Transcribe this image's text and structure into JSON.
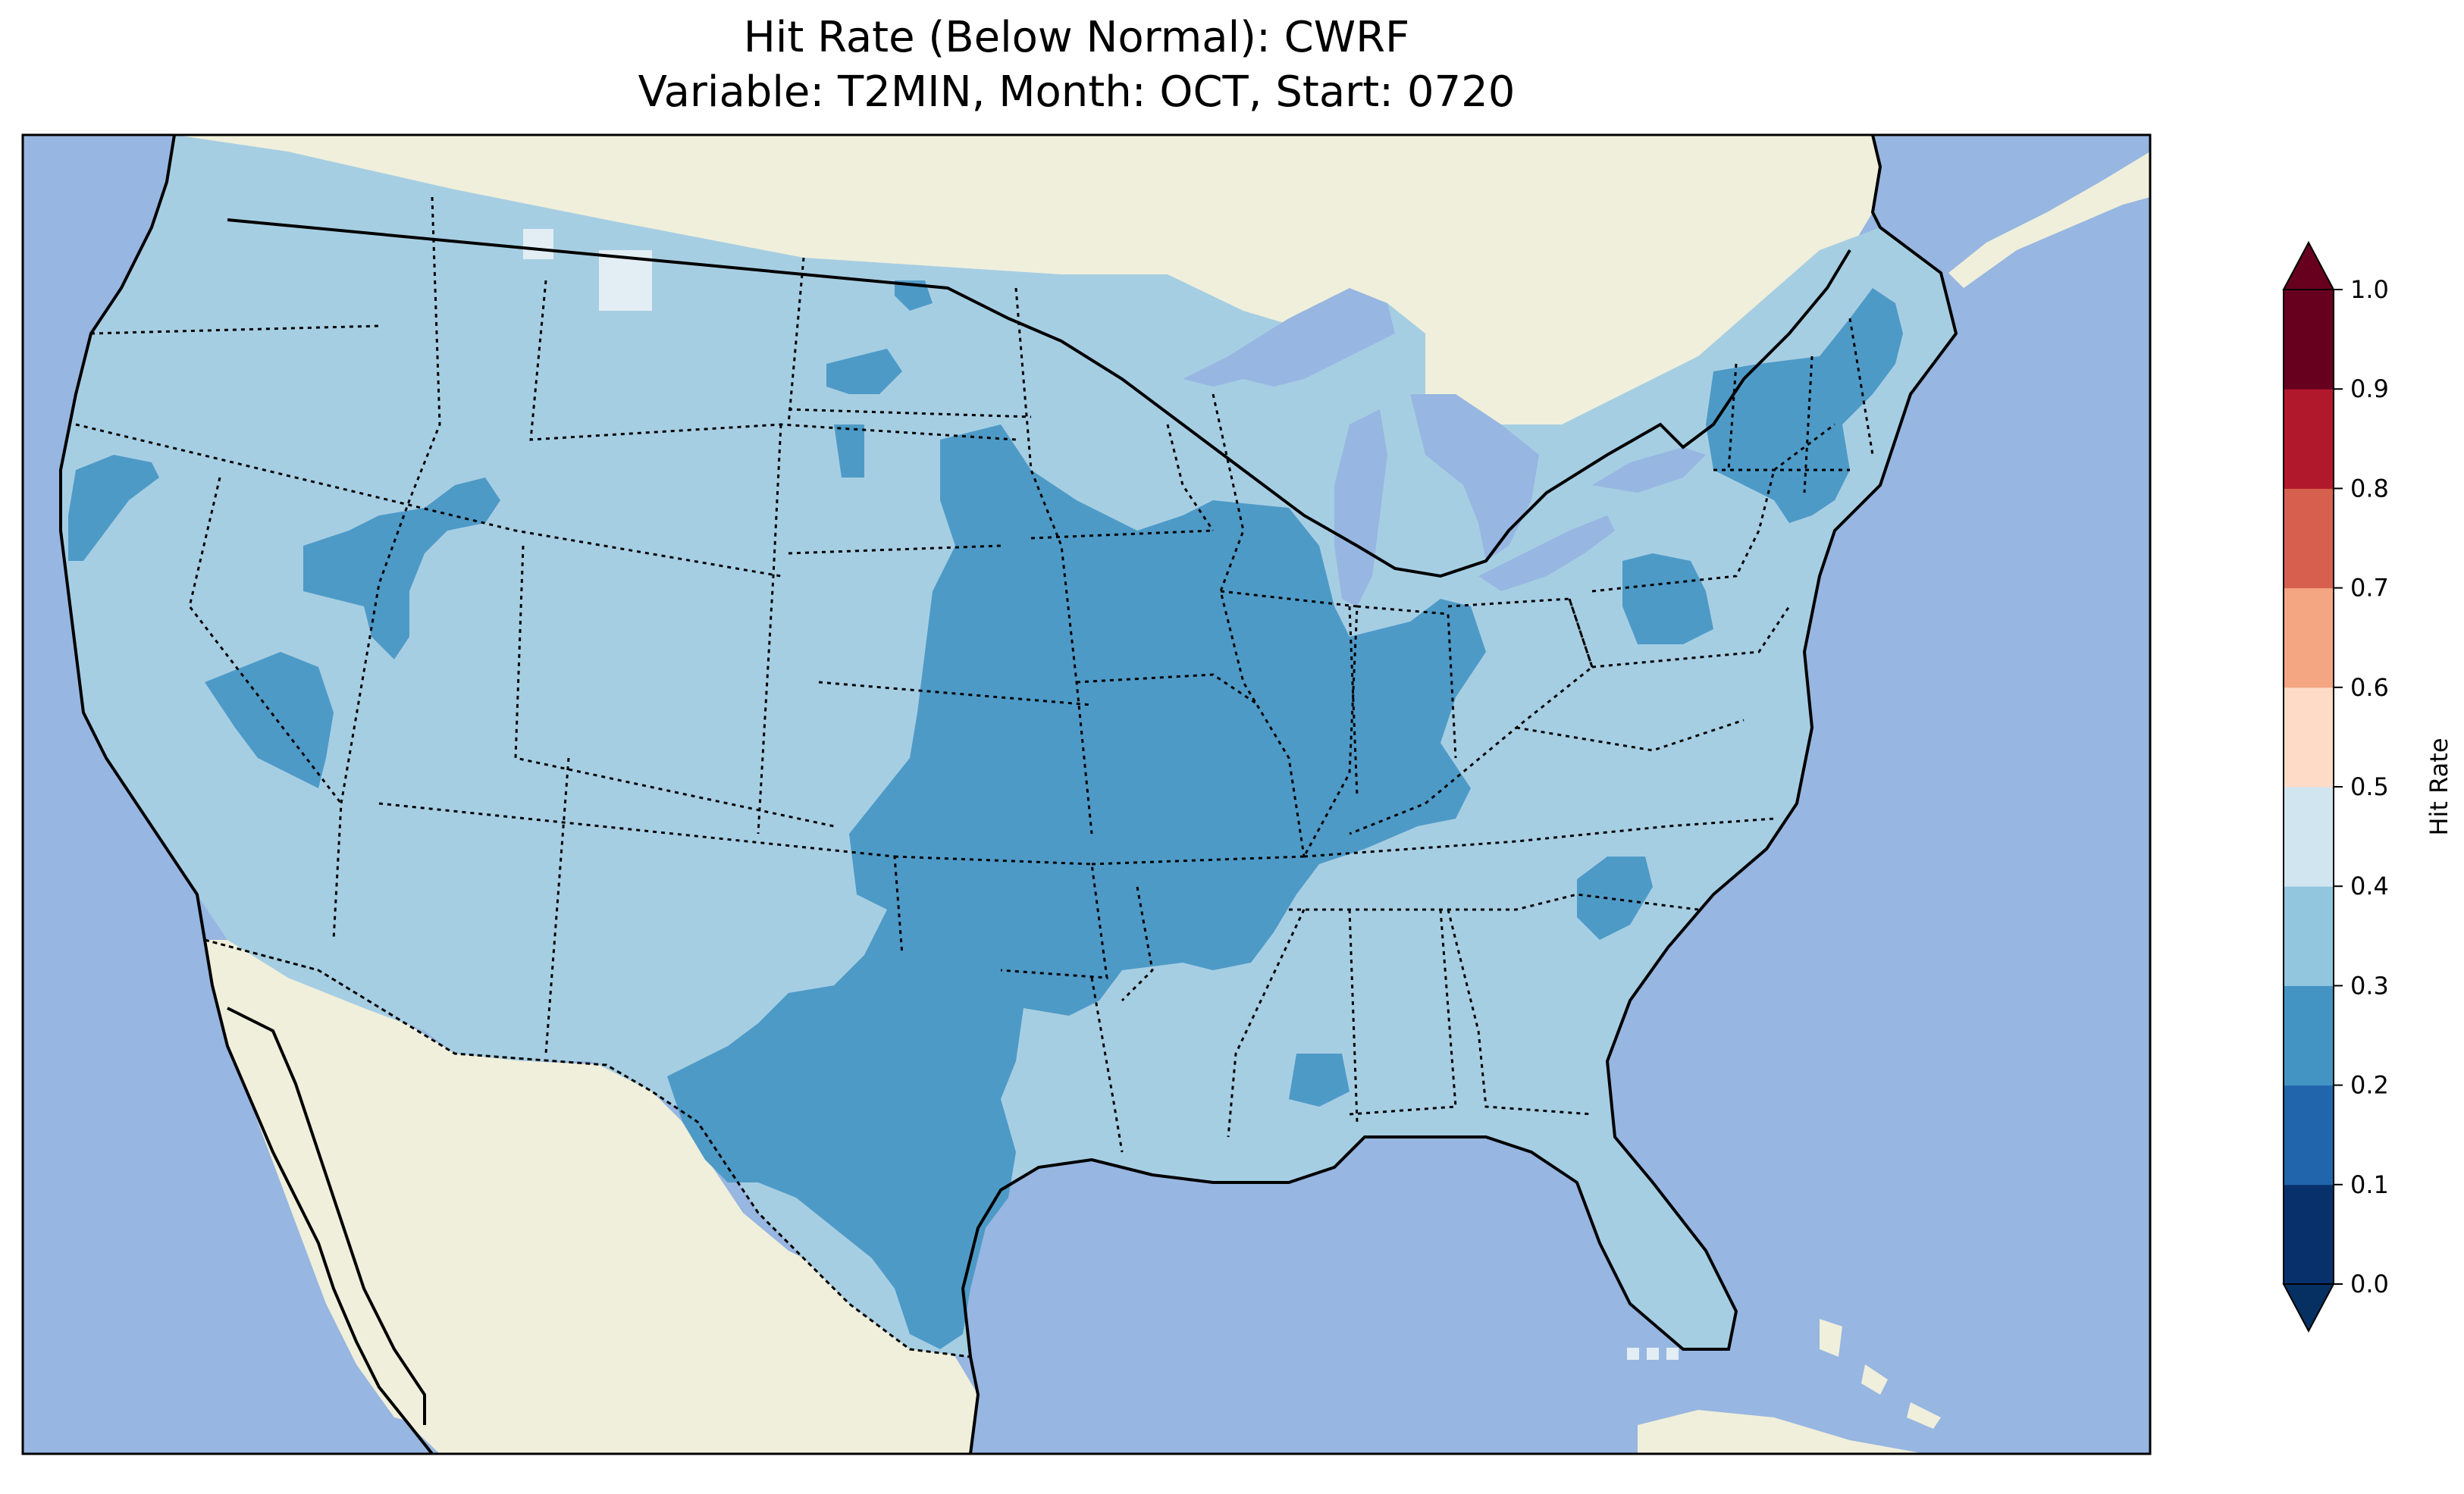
{
  "title": {
    "line1": "Hit Rate (Below Normal): CWRF",
    "line2": "Variable: T2MIN, Month: OCT, Start: 0720"
  },
  "colorbar": {
    "label": "Hit Rate",
    "ticks": [
      "0.0",
      "0.1",
      "0.2",
      "0.3",
      "0.4",
      "0.5",
      "0.6",
      "0.7",
      "0.8",
      "0.9",
      "1.0"
    ],
    "bin_colors": [
      "#08306b",
      "#2166ac",
      "#4393c3",
      "#92c5de",
      "#d1e5f0",
      "#fddbc7",
      "#f4a582",
      "#d6604d",
      "#b2182b",
      "#67001f"
    ],
    "under_color": "#053061",
    "over_color": "#67001f"
  },
  "map_colors": {
    "ocean": "#97b6e1",
    "land": "#efefdb",
    "rate_03_04": "#a6cee3",
    "rate_02_03": "#4e9ac7",
    "rate_04_05": "#e3edf4"
  }
}
